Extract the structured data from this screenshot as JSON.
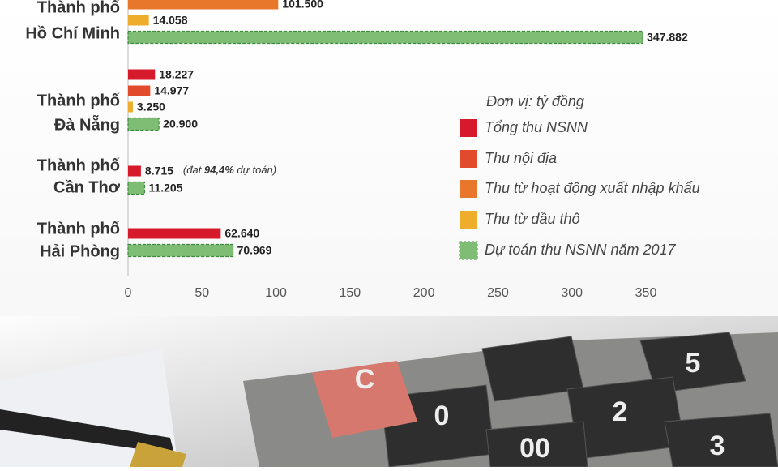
{
  "chart_data": {
    "type": "hbar",
    "categories": [
      [
        "Thành phố",
        "Hồ Chí Minh"
      ],
      [
        "Thành phố",
        "Đà Nẵng"
      ],
      [
        "Thành phố",
        "Cần Thơ"
      ],
      [
        "Thành phố",
        "Hải Phòng"
      ]
    ],
    "series": [
      {
        "name": "Tổng thu NSNN",
        "color": "#d71a2b",
        "values": [
          null,
          18.227,
          8.715,
          62.64
        ],
        "value_labels": [
          null,
          "18.227",
          "8.715",
          "62.640"
        ]
      },
      {
        "name": "Thu nội địa",
        "color": "#e14a2b",
        "values": [
          null,
          14.977,
          null,
          null
        ],
        "value_labels": [
          null,
          "14.977",
          null,
          null
        ]
      },
      {
        "name": "Thu từ hoạt động xuất nhập khẩu",
        "color": "#e8772b",
        "values": [
          101.5,
          null,
          null,
          null
        ],
        "value_labels": [
          "101.500",
          null,
          null,
          null
        ]
      },
      {
        "name": "Thu từ dầu thô",
        "color": "#eeae2b",
        "values": [
          14.058,
          3.25,
          null,
          null
        ],
        "value_labels": [
          "14.058",
          "3.250",
          null,
          null
        ]
      },
      {
        "name": "Dự toán thu NSNN năm 2017",
        "color": "#7fbc74",
        "dashed": true,
        "values": [
          347.882,
          20.9,
          11.205,
          70.969
        ],
        "value_labels": [
          "347.882",
          "20.900",
          "11.205",
          "70.969"
        ]
      }
    ],
    "annotation": {
      "before": "(đạt ",
      "bold": "94,4%",
      "after": " dự toán)"
    },
    "legend_title": "Đơn vị: tỷ đồng",
    "xlim": [
      0,
      350
    ],
    "xticks": [
      0,
      50,
      100,
      150,
      200,
      250,
      300,
      350
    ]
  },
  "photo_keys": [
    "C",
    "0",
    "5",
    "2",
    "00",
    "3"
  ]
}
